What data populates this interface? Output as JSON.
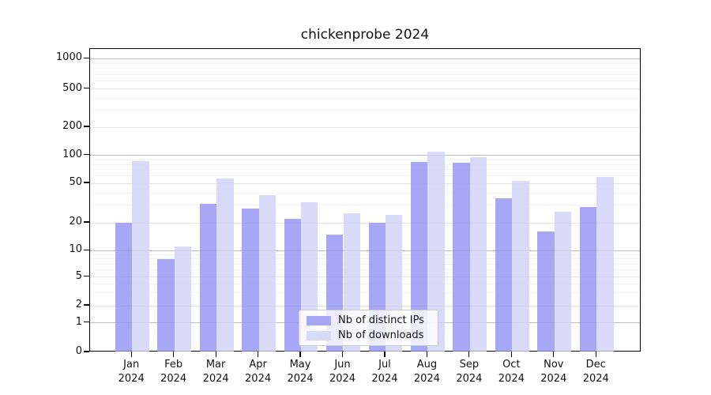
{
  "title": "chickenprobe 2024",
  "chart_data": {
    "type": "bar",
    "title": "chickenprobe 2024",
    "categories": [
      "Jan",
      "Feb",
      "Mar",
      "Apr",
      "May",
      "Jun",
      "Jul",
      "Aug",
      "Sep",
      "Oct",
      "Nov",
      "Dec"
    ],
    "category_year": "2024",
    "series": [
      {
        "name": "Nb of distinct IPs",
        "values": [
          20,
          8,
          31,
          28,
          22,
          15,
          20,
          85,
          84,
          35,
          16,
          29
        ],
        "legend_color": "#a7a7f5",
        "fill": "rgba(145,145,242,0.8)"
      },
      {
        "name": "Nb of downloads",
        "values": [
          86,
          11,
          56,
          38,
          32,
          25,
          24,
          110,
          96,
          53,
          26,
          58
        ],
        "legend_color": "#d9d9f8",
        "fill": "rgba(208,208,246,0.8)"
      }
    ],
    "y_axis": {
      "scale": "symlog",
      "range": [
        0,
        1000
      ],
      "tick_labels": [
        0,
        1,
        2,
        5,
        10,
        20,
        50,
        100,
        200,
        500,
        1000
      ],
      "major_gridlines": [
        1,
        10,
        100,
        1000
      ],
      "minor_gridlines": [
        2,
        5,
        20,
        50,
        200,
        500
      ],
      "faint_gridlines": [
        3,
        4,
        6,
        7,
        8,
        9,
        30,
        40,
        60,
        70,
        80,
        90,
        300,
        400,
        600,
        700,
        800,
        900
      ]
    },
    "legend_position": "bottom-center",
    "colors": {
      "axis": "#000000",
      "grid_major": "#bdbdbd",
      "grid_minor": "#e4e4e4",
      "grid_faint": "#f2f2f2",
      "text": "#111111"
    }
  }
}
